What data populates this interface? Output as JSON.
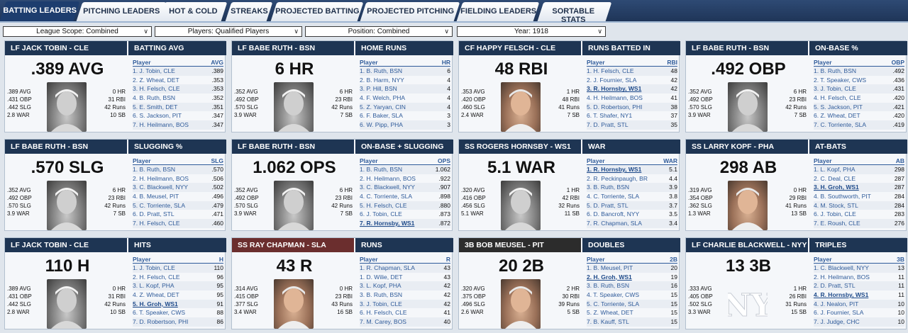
{
  "tabs": [
    {
      "label": "BATTING LEADERS",
      "active": true
    },
    {
      "label": "PITCHING LEADERS"
    },
    {
      "label": "HOT & COLD"
    },
    {
      "label": "STREAKS"
    },
    {
      "label": "PROJECTED BATTING"
    },
    {
      "label": "PROJECTED PITCHING"
    },
    {
      "label": "FIELDING LEADERS"
    },
    {
      "label": "SORTABLE STATS"
    }
  ],
  "filters": [
    {
      "label": "League Scope: Combined"
    },
    {
      "label": "Players: Qualified Players"
    },
    {
      "label": "Position: Combined"
    },
    {
      "label": "Year: 1918"
    }
  ],
  "cards": [
    {
      "player_header": "LF JACK TOBIN - CLE",
      "category": "BATTING AVG",
      "big": ".389 AVG",
      "photo": "gray",
      "left_stats": [
        ".389 AVG",
        ".431 OBP",
        ".442 SLG",
        "2.8 WAR"
      ],
      "right_stats": [
        "0 HR",
        "31 RBI",
        "42 Runs",
        "10 SB"
      ],
      "col_header": "AVG",
      "rows": [
        [
          "1. J. Tobin, CLE",
          ".389"
        ],
        [
          "2. Z. Wheat, DET",
          ".353"
        ],
        [
          "3. H. Felsch, CLE",
          ".353"
        ],
        [
          "4. B. Ruth, BSN",
          ".352"
        ],
        [
          "5. E. Smith, DET",
          ".351"
        ],
        [
          "6. S. Jackson, PIT",
          ".347"
        ],
        [
          "7. H. Heilmann, BOS",
          ".347"
        ]
      ]
    },
    {
      "player_header": "LF BABE RUTH - BSN",
      "category": "HOME RUNS",
      "big": "6 HR",
      "photo": "gray",
      "left_stats": [
        ".352 AVG",
        ".492 OBP",
        ".570 SLG",
        "3.9 WAR"
      ],
      "right_stats": [
        "6 HR",
        "23 RBI",
        "42 Runs",
        "7 SB"
      ],
      "col_header": "HR",
      "rows": [
        [
          "1. B. Ruth, BSN",
          "6"
        ],
        [
          "2. B. Harm, NYY",
          "4"
        ],
        [
          "3. P. Hill, BSN",
          "4"
        ],
        [
          "4. F. Welch, PHA",
          "4"
        ],
        [
          "5. Z. Yaryan, CIN",
          "4"
        ],
        [
          "6. F. Baker, SLA",
          "3"
        ],
        [
          "6. W. Pipp, PHA",
          "3"
        ]
      ]
    },
    {
      "player_header": "CF HAPPY FELSCH - CLE",
      "category": "RUNS BATTED IN",
      "big": "48 RBI",
      "photo": "color",
      "left_stats": [
        ".353 AVG",
        ".420 OBP",
        ".460 SLG",
        "2.4 WAR"
      ],
      "right_stats": [
        "1 HR",
        "48 RBI",
        "41 Runs",
        "7 SB"
      ],
      "col_header": "RBI",
      "rows": [
        [
          "1. H. Felsch, CLE",
          "48"
        ],
        [
          "2. J. Fournier, SLA",
          "42"
        ],
        [
          "3. R. Hornsby, WS1",
          "42"
        ],
        [
          "4. H. Heilmann, BOS",
          "41"
        ],
        [
          "5. D. Robertson, PHI",
          "38"
        ],
        [
          "6. T. Shafer, NY1",
          "37"
        ],
        [
          "7. D. Pratt, STL",
          "35"
        ]
      ],
      "hi": 2
    },
    {
      "player_header": "LF BABE RUTH - BSN",
      "category": "ON-BASE %",
      "big": ".492 OBP",
      "photo": "gray",
      "left_stats": [
        ".352 AVG",
        ".492 OBP",
        ".570 SLG",
        "3.9 WAR"
      ],
      "right_stats": [
        "6 HR",
        "23 RBI",
        "42 Runs",
        "7 SB"
      ],
      "col_header": "OBP",
      "rows": [
        [
          "1. B. Ruth, BSN",
          ".492"
        ],
        [
          "2. T. Speaker, CWS",
          ".436"
        ],
        [
          "3. J. Tobin, CLE",
          ".431"
        ],
        [
          "4. H. Felsch, CLE",
          ".420"
        ],
        [
          "5. S. Jackson, PIT",
          ".421"
        ],
        [
          "6. Z. Wheat, DET",
          ".420"
        ],
        [
          "7. C. Torriente, SLA",
          ".419"
        ]
      ]
    },
    {
      "player_header": "LF BABE RUTH - BSN",
      "category": "SLUGGING %",
      "big": ".570 SLG",
      "photo": "gray",
      "left_stats": [
        ".352 AVG",
        ".492 OBP",
        ".570 SLG",
        "3.9 WAR"
      ],
      "right_stats": [
        "6 HR",
        "23 RBI",
        "42 Runs",
        "7 SB"
      ],
      "col_header": "SLG",
      "rows": [
        [
          "1. B. Ruth, BSN",
          ".570"
        ],
        [
          "2. H. Heilmann, BOS",
          ".506"
        ],
        [
          "3. C. Blackwell, NYY",
          ".502"
        ],
        [
          "4. B. Meusel, PIT",
          ".496"
        ],
        [
          "5. C. Torriente, SLA",
          ".479"
        ],
        [
          "6. D. Pratt, STL",
          ".471"
        ],
        [
          "7. H. Felsch, CLE",
          ".460"
        ]
      ]
    },
    {
      "player_header": "LF BABE RUTH - BSN",
      "category": "ON-BASE + SLUGGING",
      "big": "1.062 OPS",
      "photo": "gray",
      "left_stats": [
        ".352 AVG",
        ".492 OBP",
        ".570 SLG",
        "3.9 WAR"
      ],
      "right_stats": [
        "6 HR",
        "23 RBI",
        "42 Runs",
        "7 SB"
      ],
      "col_header": "OPS",
      "rows": [
        [
          "1. B. Ruth, BSN",
          "1.062"
        ],
        [
          "2. H. Heilmann, BOS",
          ".922"
        ],
        [
          "3. C. Blackwell, NYY",
          ".907"
        ],
        [
          "4. C. Torriente, SLA",
          ".898"
        ],
        [
          "5. H. Felsch, CLE",
          ".880"
        ],
        [
          "6. J. Tobin, CLE",
          ".873"
        ],
        [
          "7. R. Hornsby, WS1",
          ".872"
        ]
      ],
      "hi": 6
    },
    {
      "player_header": "SS ROGERS HORNSBY - WS1",
      "category": "WAR",
      "big": "5.1 WAR",
      "photo": "gray",
      "left_stats": [
        ".320 AVG",
        ".416 OBP",
        ".456 SLG",
        "5.1 WAR"
      ],
      "right_stats": [
        "1 HR",
        "42 RBI",
        "32 Runs",
        "11 SB"
      ],
      "col_header": "WAR",
      "rows": [
        [
          "1. R. Hornsby, WS1",
          "5.1"
        ],
        [
          "2. R. Peckinpaugh, BR",
          "4.4"
        ],
        [
          "3. B. Ruth, BSN",
          "3.9"
        ],
        [
          "4. C. Torriente, SLA",
          "3.8"
        ],
        [
          "5. D. Pratt, STL",
          "3.7"
        ],
        [
          "6. D. Bancroft, NYY",
          "3.5"
        ],
        [
          "7. R. Chapman, SLA",
          "3.4"
        ]
      ],
      "hi": 0
    },
    {
      "player_header": "SS LARRY KOPF - PHA",
      "category": "AT-BATS",
      "big": "298 AB",
      "photo": "color",
      "left_stats": [
        ".319 AVG",
        ".354 OBP",
        ".362 SLG",
        "1.3 WAR"
      ],
      "right_stats": [
        "0 HR",
        "29 RBI",
        "41 Runs",
        "13 SB"
      ],
      "col_header": "AB",
      "rows": [
        [
          "1. L. Kopf, PHA",
          "298"
        ],
        [
          "2. C. Deal, CLE",
          "287"
        ],
        [
          "3. H. Groh, WS1",
          "287"
        ],
        [
          "4. B. Southworth, PIT",
          "284"
        ],
        [
          "4. M. Stock, STL",
          "284"
        ],
        [
          "6. J. Tobin, CLE",
          "283"
        ],
        [
          "7. E. Roush, CLE",
          "276"
        ]
      ],
      "hi": 2
    },
    {
      "player_header": "LF JACK TOBIN - CLE",
      "category": "HITS",
      "big": "110 H",
      "photo": "gray",
      "left_stats": [
        ".389 AVG",
        ".431 OBP",
        ".442 SLG",
        "2.8 WAR"
      ],
      "right_stats": [
        "0 HR",
        "31 RBI",
        "42 Runs",
        "10 SB"
      ],
      "col_header": "H",
      "rows": [
        [
          "1. J. Tobin, CLE",
          "110"
        ],
        [
          "2. H. Felsch, CLE",
          "96"
        ],
        [
          "3. L. Kopf, PHA",
          "95"
        ],
        [
          "4. Z. Wheat, DET",
          "95"
        ],
        [
          "5. H. Groh, WS1",
          "91"
        ],
        [
          "6. T. Speaker, CWS",
          "88"
        ],
        [
          "7. D. Robertson, PHI",
          "86"
        ]
      ],
      "hi": 4
    },
    {
      "player_header": "SS RAY CHAPMAN - SLA",
      "category": "RUNS",
      "big": "43 R",
      "photo": "color",
      "headerStyle": "red",
      "left_stats": [
        ".314 AVG",
        ".415 OBP",
        ".377 SLG",
        "3.4 WAR"
      ],
      "right_stats": [
        "0 HR",
        "23 RBI",
        "43 Runs",
        "16 SB"
      ],
      "col_header": "R",
      "rows": [
        [
          "1. R. Chapman, SLA",
          "43"
        ],
        [
          "1. D. Wilie, DET",
          "43"
        ],
        [
          "3. L. Kopf, PHA",
          "42"
        ],
        [
          "3. B. Ruth, BSN",
          "42"
        ],
        [
          "3. J. Tobin, CLE",
          "42"
        ],
        [
          "6. H. Felsch, CLE",
          "41"
        ],
        [
          "7. M. Carey, BOS",
          "40"
        ]
      ]
    },
    {
      "player_header": "3B BOB MEUSEL - PIT",
      "category": "DOUBLES",
      "big": "20 2B",
      "photo": "color",
      "headerStyle": "dark",
      "left_stats": [
        ".320 AVG",
        ".375 OBP",
        ".496 SLG",
        "2.6 WAR"
      ],
      "right_stats": [
        "2 HR",
        "30 RBI",
        "39 Runs",
        "5 SB"
      ],
      "col_header": "2B",
      "rows": [
        [
          "1. B. Meusel, PIT",
          "20"
        ],
        [
          "2. H. Groh, WS1",
          "19"
        ],
        [
          "3. B. Ruth, BSN",
          "16"
        ],
        [
          "4. T. Speaker, CWS",
          "15"
        ],
        [
          "5. C. Torriente, SLA",
          "15"
        ],
        [
          "5. Z. Wheat, DET",
          "15"
        ],
        [
          "7. B. Kauff, STL",
          "15"
        ]
      ],
      "hi": 1
    },
    {
      "player_header": "LF CHARLIE BLACKWELL - NYY",
      "category": "TRIPLES",
      "big": "13 3B",
      "photo": "logo",
      "left_stats": [
        ".333 AVG",
        ".405 OBP",
        ".502 SLG",
        "3.3 WAR"
      ],
      "right_stats": [
        "1 HR",
        "26 RBI",
        "31 Runs",
        "15 SB"
      ],
      "col_header": "3B",
      "rows": [
        [
          "1. C. Blackwell, NYY",
          "13"
        ],
        [
          "2. H. Heilmann, BOS",
          "11"
        ],
        [
          "2. D. Pratt, STL",
          "11"
        ],
        [
          "4. R. Hornsby, WS1",
          "11"
        ],
        [
          "4. J. Nealon, PIT",
          "10"
        ],
        [
          "6. J. Fournier, SLA",
          "10"
        ],
        [
          "7. J. Judge, CHC",
          "10"
        ]
      ],
      "hi": 3
    }
  ],
  "list_header_player": "Player",
  "icons": {
    "dropdown": "chevron-down-icon",
    "photo": "player-photo",
    "logo": "yankees-logo"
  }
}
